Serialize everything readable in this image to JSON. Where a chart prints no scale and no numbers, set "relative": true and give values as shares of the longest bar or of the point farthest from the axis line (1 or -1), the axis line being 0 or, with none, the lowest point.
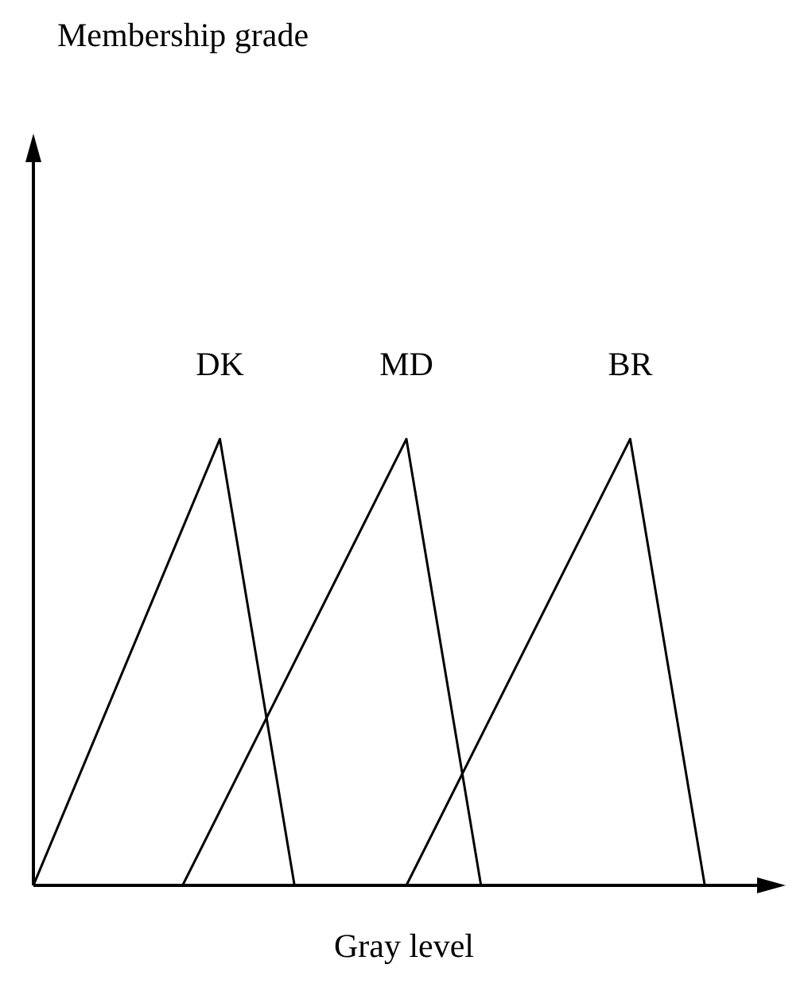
{
  "chart_data": {
    "type": "line",
    "title": "Membership grade",
    "xlabel": "Gray level",
    "relative": true,
    "categories": [
      null,
      null,
      null,
      null,
      null,
      null,
      null,
      null,
      null,
      null,
      null,
      null,
      null,
      null,
      null,
      null,
      null,
      null,
      null,
      null,
      null
    ],
    "series": [
      {
        "name": "DK",
        "color": "#000000",
        "values": [
          0,
          null,
          null,
          null,
          null,
          1,
          null,
          0,
          null,
          null,
          null,
          null,
          null,
          null,
          null,
          null,
          null,
          null,
          null,
          null,
          null
        ]
      },
      {
        "name": "MD",
        "color": "#000000",
        "values": [
          null,
          null,
          null,
          null,
          0,
          null,
          null,
          null,
          null,
          null,
          1,
          null,
          0,
          null,
          null,
          null,
          null,
          null,
          null,
          null,
          null
        ]
      },
      {
        "name": "BR",
        "color": "#000000",
        "values": [
          null,
          null,
          null,
          null,
          null,
          null,
          null,
          null,
          null,
          null,
          0,
          null,
          null,
          null,
          null,
          null,
          1,
          null,
          0,
          null,
          null
        ]
      }
    ]
  }
}
